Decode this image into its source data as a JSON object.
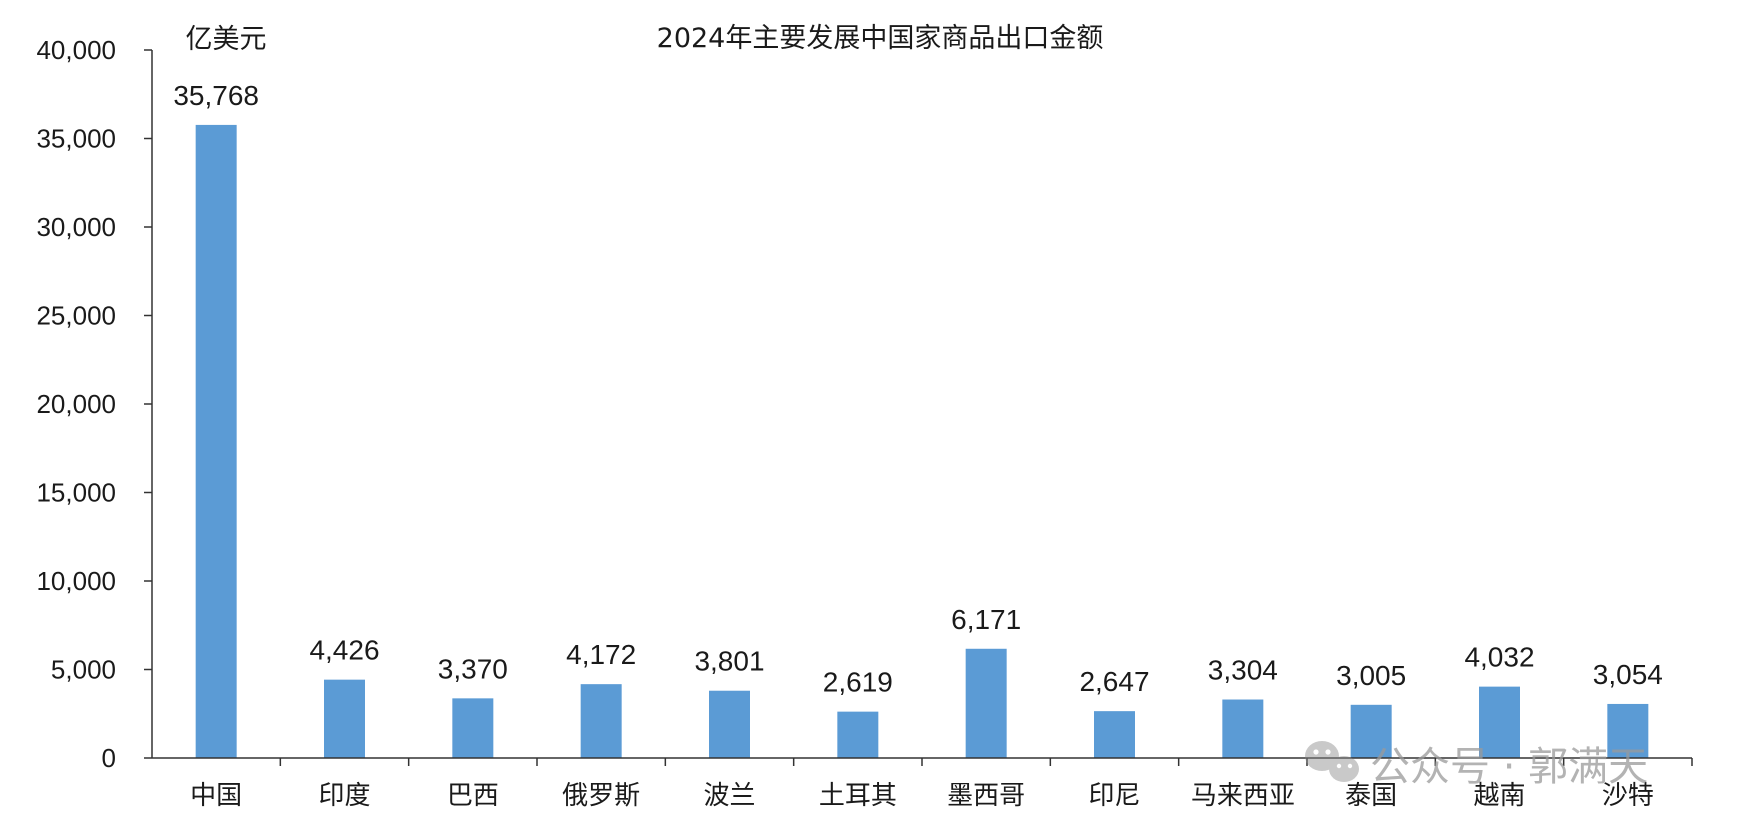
{
  "chart_data": {
    "type": "bar",
    "title": "2024年主要发展中国家商品出口金额",
    "ylabel": "亿美元",
    "xlabel": "",
    "ylim": [
      0,
      40000
    ],
    "y_ticks": [
      "0",
      "5,000",
      "10,000",
      "15,000",
      "20,000",
      "25,000",
      "30,000",
      "35,000",
      "40,000"
    ],
    "y_tick_values": [
      0,
      5000,
      10000,
      15000,
      20000,
      25000,
      30000,
      35000,
      40000
    ],
    "categories": [
      "中国",
      "印度",
      "巴西",
      "俄罗斯",
      "波兰",
      "土耳其",
      "墨西哥",
      "印尼",
      "马来西亚",
      "泰国",
      "越南",
      "沙特"
    ],
    "values": [
      35768,
      4426,
      3370,
      4172,
      3801,
      2619,
      6171,
      2647,
      3304,
      3005,
      4032,
      3054
    ],
    "value_labels": [
      "35,768",
      "4,426",
      "3,370",
      "4,172",
      "3,801",
      "2,619",
      "6,171",
      "2,647",
      "3,304",
      "3,005",
      "4,032",
      "3,054"
    ],
    "bar_color": "#5b9bd5",
    "grid": false,
    "legend": "none"
  },
  "watermark": {
    "text": "公众号 · 郭满天",
    "icon": "wechat-icon"
  }
}
